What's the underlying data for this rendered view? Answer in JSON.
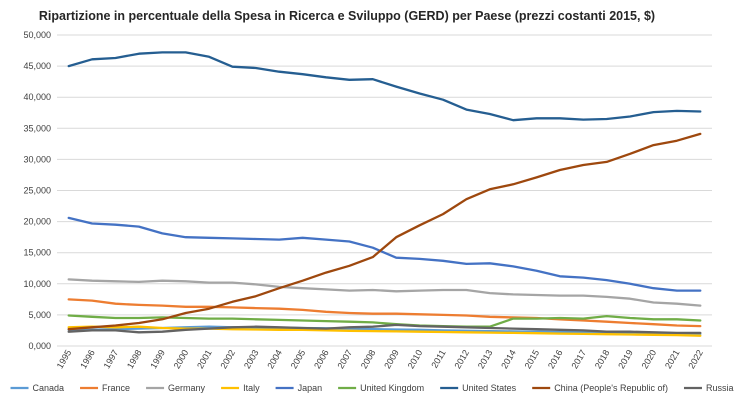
{
  "chart_data": {
    "type": "line",
    "title": "Ripartizione in percentuale della Spesa in Ricerca e Sviluppo (GERD) per Paese (prezzi costanti 2015, $)",
    "xlabel": "",
    "ylabel": "",
    "ylim": [
      0,
      50000
    ],
    "yticks": [
      "0,000",
      "5,000",
      "10,000",
      "15,000",
      "20,000",
      "25,000",
      "30,000",
      "35,000",
      "40,000",
      "45,000",
      "50,000"
    ],
    "grid": true,
    "legend_position": "bottom",
    "x": [
      "1995",
      "1996",
      "1997",
      "1998",
      "1999",
      "2000",
      "2001",
      "2002",
      "2003",
      "2004",
      "2005",
      "2006",
      "2007",
      "2008",
      "2009",
      "2010",
      "2011",
      "2012",
      "2013",
      "2014",
      "2015",
      "2016",
      "2017",
      "2018",
      "2019",
      "2020",
      "2021",
      "2022"
    ],
    "series": [
      {
        "name": "Canada",
        "color": "#5b9bd5",
        "values": [
          2600,
          2600,
          2700,
          2800,
          2900,
          3000,
          3100,
          3000,
          3000,
          2950,
          2900,
          2850,
          2800,
          2700,
          2650,
          2600,
          2500,
          2450,
          2400,
          2350,
          2300,
          2250,
          2200,
          2150,
          2100,
          2050,
          2000,
          1950
        ]
      },
      {
        "name": "France",
        "color": "#ed7d31",
        "values": [
          7500,
          7300,
          6800,
          6600,
          6500,
          6300,
          6300,
          6200,
          6100,
          6000,
          5800,
          5500,
          5300,
          5200,
          5200,
          5100,
          5000,
          4900,
          4700,
          4600,
          4500,
          4300,
          4100,
          3900,
          3700,
          3500,
          3300,
          3200
        ]
      },
      {
        "name": "Germany",
        "color": "#a5a5a5",
        "values": [
          10700,
          10500,
          10400,
          10300,
          10500,
          10400,
          10200,
          10200,
          9900,
          9500,
          9300,
          9100,
          8900,
          9000,
          8800,
          8900,
          9000,
          9000,
          8500,
          8300,
          8200,
          8100,
          8100,
          7900,
          7600,
          7000,
          6800,
          6500
        ]
      },
      {
        "name": "Italy",
        "color": "#ffc000",
        "values": [
          3000,
          3100,
          3000,
          3100,
          2900,
          2800,
          2800,
          2700,
          2650,
          2600,
          2600,
          2500,
          2450,
          2400,
          2350,
          2300,
          2250,
          2200,
          2150,
          2100,
          2050,
          2000,
          1950,
          1900,
          1850,
          1800,
          1750,
          1650
        ]
      },
      {
        "name": "Japan",
        "color": "#4472c4",
        "values": [
          20600,
          19700,
          19500,
          19200,
          18100,
          17500,
          17400,
          17300,
          17200,
          17100,
          17400,
          17100,
          16800,
          15800,
          14200,
          14000,
          13700,
          13200,
          13300,
          12800,
          12100,
          11200,
          11000,
          10600,
          10000,
          9300,
          8900,
          8900
        ]
      },
      {
        "name": "United Kingdom",
        "color": "#70ad47",
        "values": [
          4900,
          4700,
          4500,
          4500,
          4600,
          4500,
          4400,
          4400,
          4300,
          4200,
          4100,
          4000,
          3900,
          3800,
          3500,
          3300,
          3200,
          3100,
          3100,
          4400,
          4400,
          4500,
          4400,
          4800,
          4500,
          4300,
          4300,
          4100
        ]
      },
      {
        "name": "United States",
        "color": "#255e91",
        "values": [
          45000,
          46100,
          46300,
          47000,
          47200,
          47200,
          46500,
          44900,
          44700,
          44100,
          43700,
          43200,
          42800,
          42900,
          41700,
          40600,
          39600,
          38000,
          37300,
          36300,
          36600,
          36600,
          36400,
          36500,
          36900,
          37600,
          37800,
          37700
        ]
      },
      {
        "name": "China (People's Republic of)",
        "color": "#9e480e",
        "values": [
          2700,
          3000,
          3300,
          3700,
          4300,
          5300,
          6000,
          7100,
          8000,
          9300,
          10500,
          11800,
          12900,
          14300,
          17500,
          19400,
          21200,
          23600,
          25200,
          26000,
          27100,
          28300,
          29100,
          29600,
          30900,
          32300,
          33000,
          34100
        ]
      },
      {
        "name": "Russia",
        "color": "#636363",
        "values": [
          2300,
          2500,
          2500,
          2200,
          2300,
          2600,
          2800,
          3000,
          3100,
          3000,
          2900,
          2800,
          3000,
          3100,
          3400,
          3200,
          3100,
          3000,
          2900,
          2800,
          2700,
          2600,
          2500,
          2300,
          2300,
          2200,
          2100,
          2100
        ]
      }
    ]
  }
}
